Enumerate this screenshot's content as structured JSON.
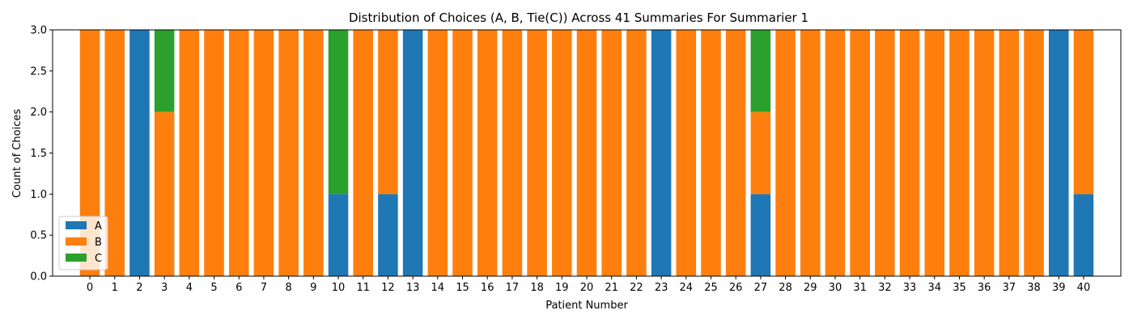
{
  "chart_data": {
    "type": "bar",
    "stacked": true,
    "title": "Distribution of Choices (A, B, Tie(C)) Across 41 Summaries For Summarier 1",
    "xlabel": "Patient Number",
    "ylabel": "Count of Choices",
    "ylim": [
      0,
      3
    ],
    "yticks": [
      "0.0",
      "0.5",
      "1.0",
      "1.5",
      "2.0",
      "2.5",
      "3.0"
    ],
    "categories": [
      "0",
      "1",
      "2",
      "3",
      "4",
      "5",
      "6",
      "7",
      "8",
      "9",
      "10",
      "11",
      "12",
      "13",
      "14",
      "15",
      "16",
      "17",
      "18",
      "19",
      "20",
      "21",
      "22",
      "23",
      "24",
      "25",
      "26",
      "27",
      "28",
      "29",
      "30",
      "31",
      "32",
      "33",
      "34",
      "35",
      "36",
      "37",
      "38",
      "39",
      "40"
    ],
    "series": [
      {
        "name": "A",
        "color": "#1f77b4",
        "values": [
          0,
          0,
          3,
          0,
          0,
          0,
          0,
          0,
          0,
          0,
          1,
          0,
          1,
          3,
          0,
          0,
          0,
          0,
          0,
          0,
          0,
          0,
          0,
          3,
          0,
          0,
          0,
          1,
          0,
          0,
          0,
          0,
          0,
          0,
          0,
          0,
          0,
          0,
          0,
          3,
          1
        ]
      },
      {
        "name": "B",
        "color": "#ff7f0e",
        "values": [
          3,
          3,
          0,
          2,
          3,
          3,
          3,
          3,
          3,
          3,
          0,
          3,
          2,
          0,
          3,
          3,
          3,
          3,
          3,
          3,
          3,
          3,
          3,
          0,
          3,
          3,
          3,
          1,
          3,
          3,
          3,
          3,
          3,
          3,
          3,
          3,
          3,
          3,
          3,
          0,
          2
        ]
      },
      {
        "name": "C",
        "color": "#2ca02c",
        "values": [
          0,
          0,
          0,
          1,
          0,
          0,
          0,
          0,
          0,
          0,
          2,
          0,
          0,
          0,
          0,
          0,
          0,
          0,
          0,
          0,
          0,
          0,
          0,
          0,
          0,
          0,
          0,
          1,
          0,
          0,
          0,
          0,
          0,
          0,
          0,
          0,
          0,
          0,
          0,
          0,
          0
        ]
      }
    ],
    "legend_position": "lower-left",
    "grid": false
  }
}
